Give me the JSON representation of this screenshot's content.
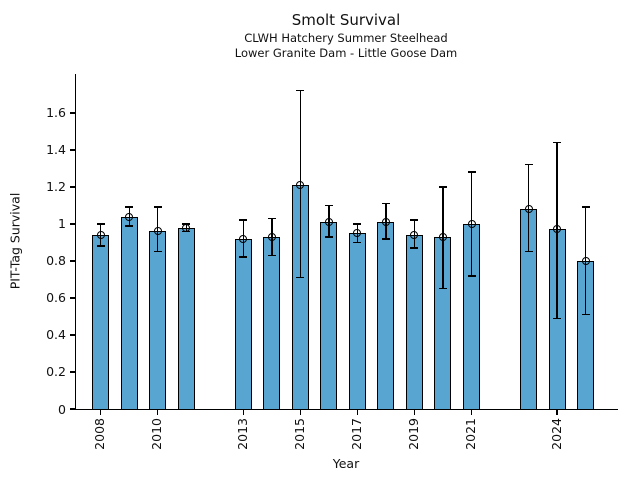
{
  "figure": {
    "title": "Smolt Survival",
    "subtitle1": "CLWH Hatchery Summer Steelhead",
    "subtitle2": "Lower Granite Dam - Little Goose Dam",
    "xlabel": "Year",
    "ylabel": "PIT-Tag Survival"
  },
  "chart_data": {
    "type": "bar",
    "title": "Smolt Survival",
    "subtitles": [
      "CLWH Hatchery Summer Steelhead",
      "Lower Granite Dam - Little Goose Dam"
    ],
    "xlabel": "Year",
    "ylabel": "PIT-Tag Survival",
    "categories": [
      2008,
      2009,
      2010,
      2011,
      2013,
      2014,
      2015,
      2016,
      2017,
      2018,
      2019,
      2020,
      2021,
      2023,
      2024,
      2025
    ],
    "values": [
      0.94,
      1.04,
      0.96,
      0.98,
      0.92,
      0.93,
      1.21,
      1.01,
      0.95,
      1.01,
      0.94,
      0.93,
      1.0,
      1.08,
      0.97,
      0.8
    ],
    "error_low": [
      0.88,
      0.99,
      0.85,
      0.96,
      0.82,
      0.83,
      0.71,
      0.93,
      0.9,
      0.92,
      0.87,
      0.65,
      0.72,
      0.85,
      0.49,
      0.51
    ],
    "error_high": [
      1.0,
      1.09,
      1.09,
      1.0,
      1.02,
      1.03,
      1.72,
      1.1,
      1.0,
      1.11,
      1.02,
      1.2,
      1.28,
      1.32,
      1.44,
      1.09
    ],
    "missing_years": [
      2012,
      2022
    ],
    "xticks": [
      2008,
      2010,
      2013,
      2015,
      2017,
      2019,
      2021,
      2024
    ],
    "xtick_labels": [
      "2008",
      "2010",
      "2013",
      "2015",
      "2017",
      "2019",
      "2021",
      "2024"
    ],
    "yticks": [
      0,
      0.2,
      0.4,
      0.6,
      0.8,
      1.0,
      1.2,
      1.4,
      1.6
    ],
    "ytick_labels": [
      "0",
      "0.2",
      "0.4",
      "0.6",
      "0.8",
      "1",
      "1.2",
      "1.4",
      "1.6"
    ],
    "xlim": [
      2007.1,
      2026.1
    ],
    "ylim": [
      0,
      1.81
    ],
    "grid": false,
    "legend": "none",
    "error_marker": "open-circle",
    "bar_color": "#58A5D2",
    "bar_edge_color": "#000000",
    "background_color": "#ffffff",
    "xtick_rotation_deg": 90
  }
}
